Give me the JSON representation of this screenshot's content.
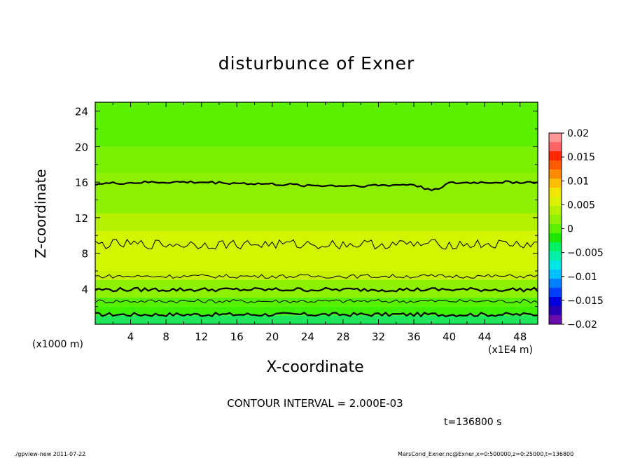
{
  "chart_data": {
    "type": "heatmap",
    "title": "disturbunce of Exner",
    "xlabel": "X-coordinate",
    "ylabel": "Z-coordinate",
    "xlim": [
      0,
      50
    ],
    "ylim": [
      0,
      25
    ],
    "x_ticks": [
      4,
      8,
      12,
      16,
      20,
      24,
      28,
      32,
      36,
      40,
      44,
      48
    ],
    "y_ticks": [
      4,
      8,
      12,
      16,
      20,
      24
    ],
    "x_scale_note": "(x1000 m)",
    "x_unit_note": "(x1E4 m)",
    "colorbar": {
      "ticks": [
        0.02,
        0.015,
        0.01,
        0.005,
        0,
        -0.005,
        -0.01,
        -0.015,
        -0.02
      ],
      "tick_labels": [
        "0.02",
        "0.015",
        "0.01",
        "0.005",
        "0",
        "−0.005",
        "−0.01",
        "−0.015",
        "−0.02"
      ],
      "range": [
        -0.02,
        0.02
      ]
    },
    "contour_interval": "CONTOUR INTERVAL = 2.000E-03",
    "contour_levels_z": [
      {
        "z": 1.1,
        "weight": "bold"
      },
      {
        "z": 2.6,
        "weight": "thin"
      },
      {
        "z": 3.9,
        "weight": "bold"
      },
      {
        "z": 5.4,
        "weight": "thin"
      },
      {
        "z": 9.0,
        "weight": "thin"
      },
      {
        "z": 15.8,
        "weight": "bold"
      }
    ],
    "field_bands": [
      {
        "z_from": 0,
        "z_to": 1,
        "color": "#1fe65a"
      },
      {
        "z_from": 1,
        "z_to": 2,
        "color": "#3cf000"
      },
      {
        "z_from": 2,
        "z_to": 3,
        "color": "#55f000"
      },
      {
        "z_from": 3,
        "z_to": 5,
        "color": "#8cf000"
      },
      {
        "z_from": 5,
        "z_to": 6,
        "color": "#c8f000"
      },
      {
        "z_from": 6,
        "z_to": 10.5,
        "color": "#d2f500"
      },
      {
        "z_from": 10.5,
        "z_to": 12.5,
        "color": "#b4f000"
      },
      {
        "z_from": 12.5,
        "z_to": 17,
        "color": "#8cf000"
      },
      {
        "z_from": 17,
        "z_to": 20,
        "color": "#78f000"
      },
      {
        "z_from": 20,
        "z_to": 25,
        "color": "#5af000"
      }
    ],
    "time": "t=136800 s"
  },
  "footer": {
    "left": "./gpview-new   2011-07-22",
    "right": "MarsCond_Exner.nc@Exner,x=0:500000,z=0:25000,t=136800"
  }
}
